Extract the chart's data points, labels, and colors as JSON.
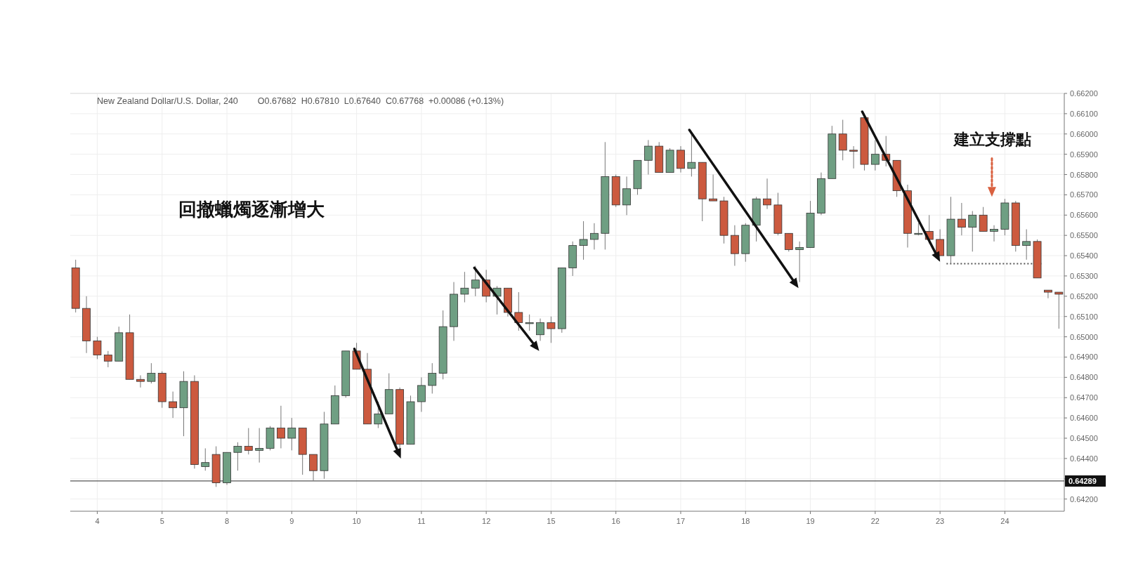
{
  "chart_data": {
    "type": "candlestick",
    "title": "New Zealand Dollar/U.S. Dollar, 240",
    "subtitle": "O0.67682  H0.67810  L0.67640  C0.67768  +0.00086 (+0.13%)",
    "annotations": [
      "回撤蠟燭逐漸增大",
      "建立支撐點"
    ],
    "categories": [
      null,
      null,
      "4",
      null,
      null,
      null,
      null,
      null,
      "5",
      null,
      null,
      null,
      null,
      null,
      "8",
      null,
      null,
      null,
      null,
      null,
      "9",
      null,
      null,
      null,
      null,
      null,
      "10",
      null,
      null,
      null,
      null,
      null,
      "11",
      null,
      null,
      null,
      null,
      null,
      "12",
      null,
      null,
      null,
      null,
      null,
      "15",
      null,
      null,
      null,
      null,
      null,
      "16",
      null,
      null,
      null,
      null,
      null,
      "17",
      null,
      null,
      null,
      null,
      null,
      "18",
      null,
      null,
      null,
      null,
      null,
      "19",
      null,
      null,
      null,
      null,
      null,
      "22",
      null,
      null,
      null,
      null,
      null,
      "23",
      null,
      null,
      null,
      null,
      null,
      "24",
      null,
      null,
      null,
      null,
      null
    ],
    "ohlc": [
      [
        0.6534,
        0.6538,
        0.6512,
        0.6514
      ],
      [
        0.6514,
        0.652,
        0.6492,
        0.6498
      ],
      [
        0.6498,
        0.65,
        0.6489,
        0.6491
      ],
      [
        0.6491,
        0.6493,
        0.6485,
        0.6488
      ],
      [
        0.6488,
        0.6505,
        0.6488,
        0.6502
      ],
      [
        0.6502,
        0.6511,
        0.6479,
        0.6479
      ],
      [
        0.6479,
        0.6481,
        0.6475,
        0.6478
      ],
      [
        0.6478,
        0.6487,
        0.6477,
        0.6482
      ],
      [
        0.6482,
        0.6483,
        0.6465,
        0.6468
      ],
      [
        0.6468,
        0.6473,
        0.646,
        0.6465
      ],
      [
        0.6465,
        0.6483,
        0.6451,
        0.6478
      ],
      [
        0.6478,
        0.6481,
        0.6435,
        0.6437
      ],
      [
        0.6436,
        0.6445,
        0.6434,
        0.6438
      ],
      [
        0.6442,
        0.6446,
        0.6426,
        0.6428
      ],
      [
        0.6428,
        0.6443,
        0.6427,
        0.6443
      ],
      [
        0.6443,
        0.6448,
        0.6434,
        0.6446
      ],
      [
        0.6446,
        0.6455,
        0.6442,
        0.6444
      ],
      [
        0.6444,
        0.6455,
        0.6438,
        0.6445
      ],
      [
        0.6445,
        0.6456,
        0.6444,
        0.6455
      ],
      [
        0.6455,
        0.6466,
        0.6445,
        0.645
      ],
      [
        0.645,
        0.646,
        0.6444,
        0.6455
      ],
      [
        0.6455,
        0.6455,
        0.6432,
        0.6442
      ],
      [
        0.6442,
        0.6442,
        0.6429,
        0.6434
      ],
      [
        0.6434,
        0.6463,
        0.643,
        0.6457
      ],
      [
        0.6457,
        0.6476,
        0.6457,
        0.6471
      ],
      [
        0.6471,
        0.6493,
        0.647,
        0.6493
      ],
      [
        0.6493,
        0.6497,
        0.6484,
        0.6484
      ],
      [
        0.6484,
        0.6492,
        0.6457,
        0.6457
      ],
      [
        0.6457,
        0.6468,
        0.6455,
        0.6462
      ],
      [
        0.6462,
        0.6482,
        0.6462,
        0.6474
      ],
      [
        0.6474,
        0.6475,
        0.6444,
        0.6447
      ],
      [
        0.6447,
        0.6471,
        0.6447,
        0.6468
      ],
      [
        0.6468,
        0.648,
        0.6463,
        0.6476
      ],
      [
        0.6476,
        0.6487,
        0.6472,
        0.6482
      ],
      [
        0.6482,
        0.6513,
        0.6479,
        0.6505
      ],
      [
        0.6505,
        0.6527,
        0.6498,
        0.6521
      ],
      [
        0.6521,
        0.6532,
        0.6517,
        0.6524
      ],
      [
        0.6524,
        0.6535,
        0.652,
        0.6528
      ],
      [
        0.6528,
        0.6533,
        0.6517,
        0.652
      ],
      [
        0.652,
        0.6525,
        0.6511,
        0.6524
      ],
      [
        0.6524,
        0.6524,
        0.651,
        0.6512
      ],
      [
        0.6512,
        0.6522,
        0.6503,
        0.6507
      ],
      [
        0.6507,
        0.6511,
        0.6503,
        0.6507
      ],
      [
        0.6501,
        0.6509,
        0.6498,
        0.6507
      ],
      [
        0.6507,
        0.651,
        0.6497,
        0.6504
      ],
      [
        0.6504,
        0.6534,
        0.6502,
        0.6534
      ],
      [
        0.6534,
        0.6547,
        0.653,
        0.6545
      ],
      [
        0.6545,
        0.6557,
        0.6538,
        0.6548
      ],
      [
        0.6548,
        0.6556,
        0.6543,
        0.6551
      ],
      [
        0.6551,
        0.6596,
        0.6543,
        0.6579
      ],
      [
        0.6579,
        0.658,
        0.6564,
        0.6565
      ],
      [
        0.6565,
        0.6579,
        0.656,
        0.6573
      ],
      [
        0.6573,
        0.6587,
        0.657,
        0.6587
      ],
      [
        0.6587,
        0.6597,
        0.658,
        0.6594
      ],
      [
        0.6594,
        0.6596,
        0.6581,
        0.6581
      ],
      [
        0.6581,
        0.6593,
        0.6581,
        0.6592
      ],
      [
        0.6592,
        0.6594,
        0.6581,
        0.6583
      ],
      [
        0.6583,
        0.66,
        0.6579,
        0.6586
      ],
      [
        0.6586,
        0.6586,
        0.6557,
        0.6568
      ],
      [
        0.6568,
        0.658,
        0.6567,
        0.6567
      ],
      [
        0.6567,
        0.6569,
        0.6546,
        0.655
      ],
      [
        0.655,
        0.6555,
        0.6535,
        0.6541
      ],
      [
        0.6541,
        0.6556,
        0.6537,
        0.6555
      ],
      [
        0.6555,
        0.6569,
        0.6547,
        0.6568
      ],
      [
        0.6568,
        0.6578,
        0.6563,
        0.6565
      ],
      [
        0.6565,
        0.6571,
        0.655,
        0.6551
      ],
      [
        0.6551,
        0.6551,
        0.6542,
        0.6543
      ],
      [
        0.6543,
        0.6547,
        0.6527,
        0.6544
      ],
      [
        0.6544,
        0.6567,
        0.6544,
        0.6561
      ],
      [
        0.6561,
        0.6581,
        0.656,
        0.6578
      ],
      [
        0.6578,
        0.6604,
        0.6578,
        0.66
      ],
      [
        0.66,
        0.6607,
        0.6587,
        0.6592
      ],
      [
        0.6592,
        0.6594,
        0.6583,
        0.6592
      ],
      [
        0.6608,
        0.661,
        0.6582,
        0.6585
      ],
      [
        0.6585,
        0.6597,
        0.6582,
        0.659
      ],
      [
        0.659,
        0.6599,
        0.6584,
        0.6587
      ],
      [
        0.6587,
        0.6587,
        0.6569,
        0.6572
      ],
      [
        0.6572,
        0.6575,
        0.6544,
        0.6551
      ],
      [
        0.6551,
        0.6556,
        0.655,
        0.6551
      ],
      [
        0.6552,
        0.656,
        0.6546,
        0.6548
      ],
      [
        0.6548,
        0.6553,
        0.654,
        0.654
      ],
      [
        0.654,
        0.6569,
        0.6536,
        0.6558
      ],
      [
        0.6558,
        0.6566,
        0.655,
        0.6554
      ],
      [
        0.6554,
        0.6562,
        0.6542,
        0.656
      ],
      [
        0.656,
        0.6564,
        0.6552,
        0.6552
      ],
      [
        0.6552,
        0.6555,
        0.6547,
        0.6553
      ],
      [
        0.6553,
        0.6568,
        0.655,
        0.6566
      ],
      [
        0.6566,
        0.6567,
        0.6542,
        0.6545
      ],
      [
        0.6545,
        0.6553,
        0.6538,
        0.6547
      ],
      [
        0.6547,
        0.6548,
        0.6529,
        0.6529
      ],
      [
        0.6523,
        0.6523,
        0.6519,
        0.6522
      ],
      [
        0.6522,
        0.6522,
        0.6504,
        0.6521
      ]
    ],
    "colors": [
      "#cc5a3f",
      "#cc5a3f",
      "#cc5a3f",
      "#cc5a3f",
      "#6f9f83",
      "#cc5a3f",
      "#cc5a3f",
      "#6f9f83",
      "#cc5a3f",
      "#cc5a3f",
      "#6f9f83",
      "#cc5a3f",
      "#6f9f83",
      "#cc5a3f",
      "#6f9f83",
      "#6f9f83",
      "#cc5a3f",
      "#6f9f83",
      "#6f9f83",
      "#cc5a3f",
      "#6f9f83",
      "#cc5a3f",
      "#cc5a3f",
      "#6f9f83",
      "#6f9f83",
      "#6f9f83",
      "#cc5a3f",
      "#cc5a3f",
      "#6f9f83",
      "#6f9f83",
      "#cc5a3f",
      "#6f9f83",
      "#6f9f83",
      "#6f9f83",
      "#6f9f83",
      "#6f9f83",
      "#6f9f83",
      "#6f9f83",
      "#cc5a3f",
      "#6f9f83",
      "#cc5a3f",
      "#cc5a3f",
      "#6f9f83",
      "#6f9f83",
      "#cc5a3f",
      "#6f9f83",
      "#6f9f83",
      "#6f9f83",
      "#6f9f83",
      "#6f9f83",
      "#cc5a3f",
      "#6f9f83",
      "#6f9f83",
      "#6f9f83",
      "#cc5a3f",
      "#6f9f83",
      "#cc5a3f",
      "#6f9f83",
      "#cc5a3f",
      "#cc5a3f",
      "#cc5a3f",
      "#cc5a3f",
      "#6f9f83",
      "#6f9f83",
      "#cc5a3f",
      "#cc5a3f",
      "#cc5a3f",
      "#6f9f83",
      "#6f9f83",
      "#6f9f83",
      "#6f9f83",
      "#cc5a3f",
      "#cc5a3f",
      "#cc5a3f",
      "#6f9f83",
      "#cc5a3f",
      "#cc5a3f",
      "#cc5a3f",
      "#6f9f83",
      "#cc5a3f",
      "#cc5a3f",
      "#6f9f83",
      "#cc5a3f",
      "#6f9f83",
      "#cc5a3f",
      "#6f9f83",
      "#6f9f83",
      "#cc5a3f",
      "#6f9f83",
      "#cc5a3f",
      "#cc5a3f",
      "#cc5a3f"
    ],
    "ylim": [
      0.6414,
      0.662
    ],
    "yticks": [
      {
        "value": 0.642,
        "label": "0.64200"
      },
      {
        "value": 0.643,
        "label": null
      },
      {
        "value": 0.644,
        "label": "0.64400"
      },
      {
        "value": 0.645,
        "label": "0.64500"
      },
      {
        "value": 0.646,
        "label": "0.64600"
      },
      {
        "value": 0.647,
        "label": "0.64700"
      },
      {
        "value": 0.648,
        "label": "0.64800"
      },
      {
        "value": 0.649,
        "label": "0.64900"
      },
      {
        "value": 0.65,
        "label": "0.65000"
      },
      {
        "value": 0.651,
        "label": "0.65100"
      },
      {
        "value": 0.652,
        "label": "0.65200"
      },
      {
        "value": 0.653,
        "label": "0.65300"
      },
      {
        "value": 0.654,
        "label": "0.65400"
      },
      {
        "value": 0.655,
        "label": "0.65500"
      },
      {
        "value": 0.656,
        "label": "0.65600"
      },
      {
        "value": 0.657,
        "label": "0.65700"
      },
      {
        "value": 0.658,
        "label": "0.65800"
      },
      {
        "value": 0.659,
        "label": "0.65900"
      },
      {
        "value": 0.66,
        "label": "0.66000"
      },
      {
        "value": 0.661,
        "label": "0.66100"
      },
      {
        "value": 0.662,
        "label": "0.66200"
      }
    ],
    "ref_lines": [
      {
        "axis": "y",
        "value": 0.64289,
        "label": "0.64289",
        "color": "#555555"
      },
      {
        "axis": "y",
        "value": 0.6536,
        "color": "#555555",
        "line_style": "dotted"
      }
    ],
    "grid": true
  }
}
